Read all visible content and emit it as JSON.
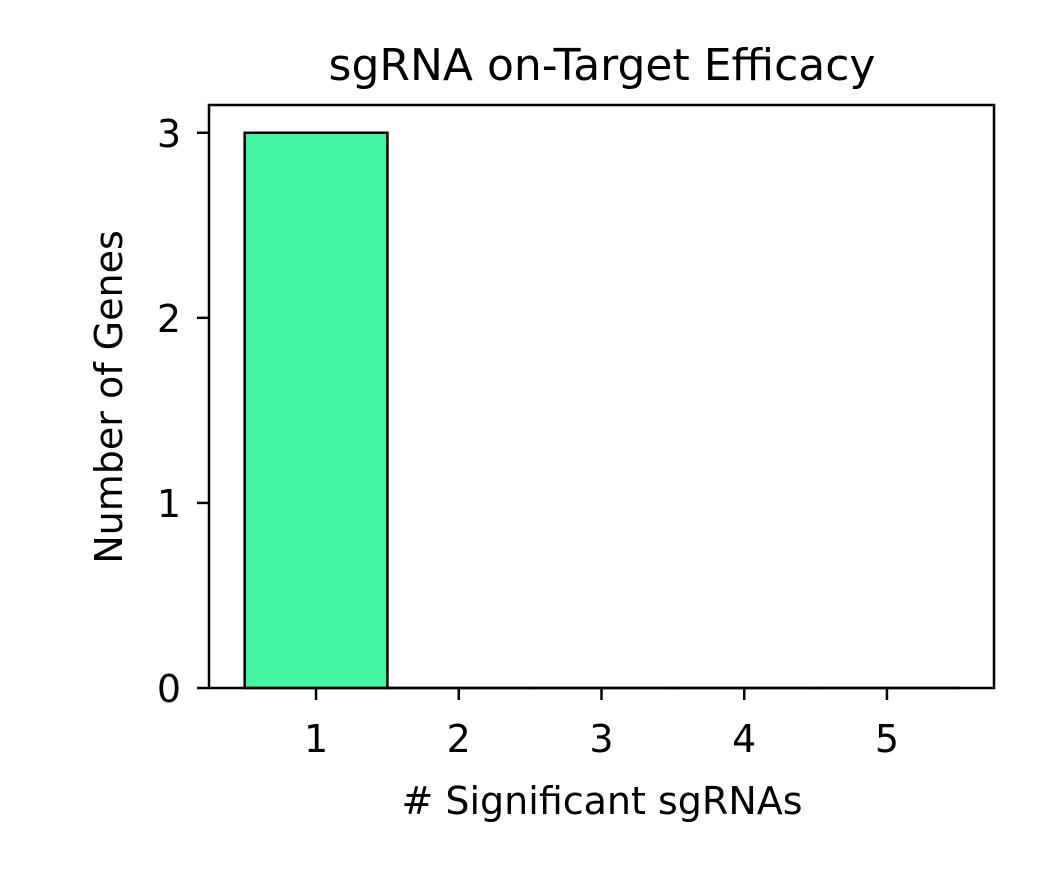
{
  "chart_data": {
    "type": "bar",
    "title": "sgRNA on-Target Efficacy",
    "xlabel": "# Significant sgRNAs",
    "ylabel": "Number of Genes",
    "categories": [
      "1",
      "2",
      "3",
      "4",
      "5"
    ],
    "values": [
      3,
      0,
      0,
      0,
      0
    ],
    "x_ticks": [
      "1",
      "2",
      "3",
      "4",
      "5"
    ],
    "y_ticks": [
      "0",
      "1",
      "2",
      "3"
    ],
    "xlim": [
      0.25,
      5.75
    ],
    "ylim": [
      0,
      3.15
    ],
    "grid": false,
    "bar_color": "#44f5a0",
    "edge_color": "#000000"
  }
}
